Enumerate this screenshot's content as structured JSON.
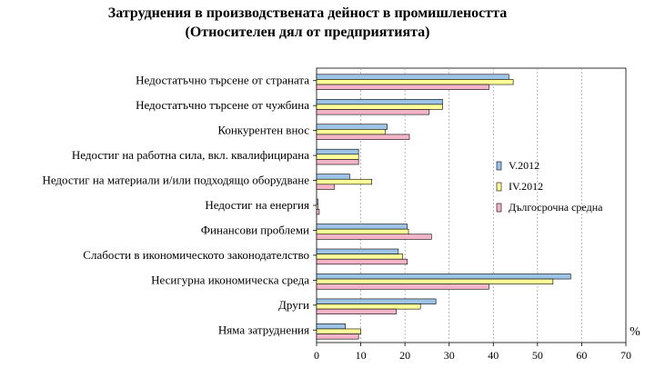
{
  "chart_data": {
    "type": "bar",
    "orientation": "horizontal",
    "title": "Затруднения в производствената дейност в промишлеността",
    "subtitle": "(Относителен дял от предприятията)",
    "unit": "%",
    "categories": [
      "Недостатъчно търсене от страната",
      "Недостатъчно търсене от чужбина",
      "Конкурентен внос",
      "Недостиг на работна сила, вкл. квалифицирана",
      "Недостиг на материали и/или подходящо оборудване",
      "Недостиг на енергия",
      "Финансови проблеми",
      "Слабости в икономическото законодателство",
      "Несигурна икономическа среда",
      "Други",
      "Няма затруднения"
    ],
    "series": [
      {
        "name": "V.2012",
        "color": "#9dc3e6",
        "values": [
          43.5,
          28.5,
          16,
          9.5,
          7.5,
          0.3,
          20.5,
          18.5,
          57.5,
          27,
          6.5
        ]
      },
      {
        "name": "IV.2012",
        "color": "#ffff99",
        "values": [
          44.5,
          28.5,
          15.5,
          9.5,
          12.5,
          0.3,
          20.8,
          19.5,
          53.5,
          23.5,
          10
        ]
      },
      {
        "name": "Дългосрочна средна",
        "color": "#f4b4c8",
        "values": [
          39,
          25.5,
          21,
          9.5,
          4,
          0.6,
          26,
          20.5,
          39,
          18,
          9.5
        ]
      }
    ],
    "xlim": [
      0,
      70
    ],
    "xticks": [
      0,
      10,
      20,
      30,
      40,
      50,
      60,
      70
    ],
    "grid": "vertical-dashed",
    "legend_position": "right"
  }
}
